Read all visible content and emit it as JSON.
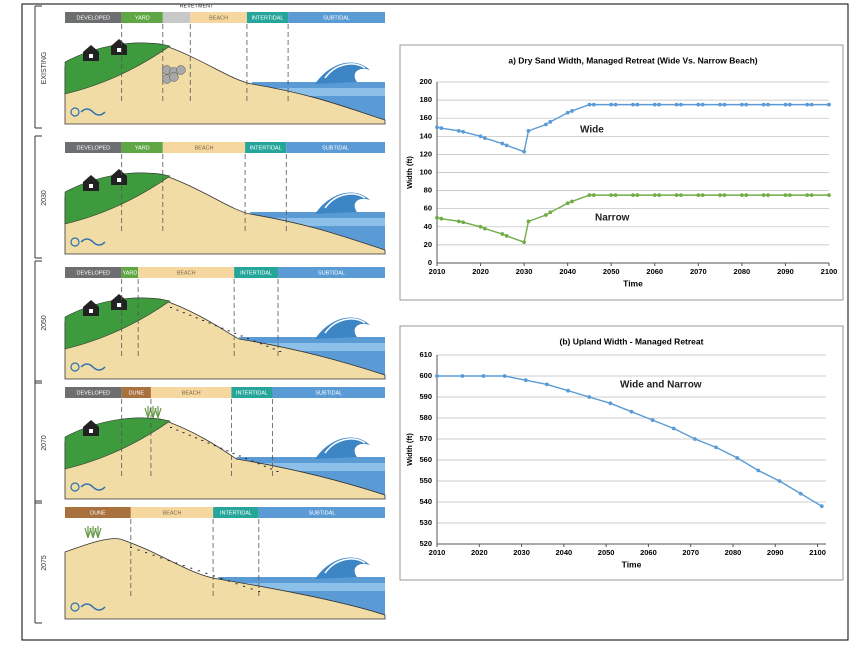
{
  "panels": [
    {
      "label": "EXISTING",
      "annotation": "REVETMENT",
      "zones": [
        "DEVELOPED",
        "YARD",
        null,
        "BEACH",
        "INTERTIDAL",
        "SUBTIDAL"
      ]
    },
    {
      "label": "2030",
      "zones": [
        "DEVELOPED",
        "YARD",
        "BEACH",
        "INTERTIDAL",
        "SUBTIDAL"
      ]
    },
    {
      "label": "2050",
      "zones": [
        "DEVELOPED",
        "YARD",
        "BEACH",
        "INTERTIDAL",
        "SUBTIDAL"
      ]
    },
    {
      "label": "2070",
      "zones": [
        "DEVELOPED",
        "DUNE",
        "BEACH",
        "INTERTIDAL",
        "SUBTIDAL"
      ]
    },
    {
      "label": "2075",
      "zones": [
        "DUNE",
        "BEACH",
        "INTERTIDAL",
        "SUBTIDAL"
      ]
    }
  ],
  "chart_data": [
    {
      "type": "line",
      "title": "a) Dry Sand Width, Managed Retreat (Wide Vs. Narrow Beach)",
      "x_label": "Time",
      "y_label": "Width (ft)",
      "x": [
        2010,
        2011,
        2015,
        2016,
        2020,
        2021,
        2025,
        2026,
        2030,
        2031,
        2035,
        2036,
        2040,
        2041,
        2045,
        2046,
        2050,
        2051,
        2055,
        2056,
        2060,
        2061,
        2065,
        2066,
        2070,
        2071,
        2075,
        2076,
        2080,
        2081,
        2085,
        2086,
        2090,
        2091,
        2095,
        2096,
        2100
      ],
      "series": [
        {
          "name": "Wide",
          "color": "#5b9bd5",
          "values": [
            150,
            149,
            146,
            145,
            140,
            138,
            132,
            130,
            123,
            146,
            153,
            156,
            166,
            168,
            175,
            175,
            175,
            175,
            175,
            175,
            175,
            175,
            175,
            175,
            175,
            175,
            175,
            175,
            175,
            175,
            175,
            175,
            175,
            175,
            175,
            175,
            175
          ]
        },
        {
          "name": "Narrow",
          "color": "#70ad47",
          "values": [
            50,
            49,
            46,
            45,
            40,
            38,
            32,
            30,
            23,
            46,
            53,
            56,
            66,
            68,
            75,
            75,
            75,
            75,
            75,
            75,
            75,
            75,
            75,
            75,
            75,
            75,
            75,
            75,
            75,
            75,
            75,
            75,
            75,
            75,
            75,
            75,
            75
          ]
        }
      ],
      "xlim": [
        2010,
        2100
      ],
      "xticks": [
        2010,
        2020,
        2030,
        2040,
        2050,
        2060,
        2070,
        2080,
        2090,
        2100
      ],
      "ylim": [
        0,
        200
      ],
      "yticks": [
        0,
        20,
        40,
        60,
        80,
        100,
        120,
        140,
        160,
        180,
        200
      ],
      "grid": true
    },
    {
      "type": "line",
      "title": "(b) Upland Width - Managed Retreat",
      "x_label": "Time",
      "y_label": "Width (ft)",
      "x": [
        2010,
        2016,
        2021,
        2026,
        2031,
        2036,
        2041,
        2046,
        2051,
        2056,
        2061,
        2066,
        2071,
        2076,
        2081,
        2086,
        2091,
        2096,
        2101
      ],
      "series": [
        {
          "name": "Wide and Narrow",
          "color": "#5b9bd5",
          "values": [
            600,
            600,
            600,
            600,
            598,
            596,
            593,
            590,
            587,
            583,
            579,
            575,
            570,
            566,
            561,
            555,
            550,
            544,
            538
          ]
        }
      ],
      "xlim": [
        2010,
        2102
      ],
      "xticks": [
        2010,
        2020,
        2030,
        2040,
        2050,
        2060,
        2070,
        2080,
        2090,
        2100
      ],
      "ylim": [
        520,
        610
      ],
      "yticks": [
        520,
        530,
        540,
        550,
        560,
        570,
        580,
        590,
        600,
        610
      ],
      "grid": true
    }
  ]
}
